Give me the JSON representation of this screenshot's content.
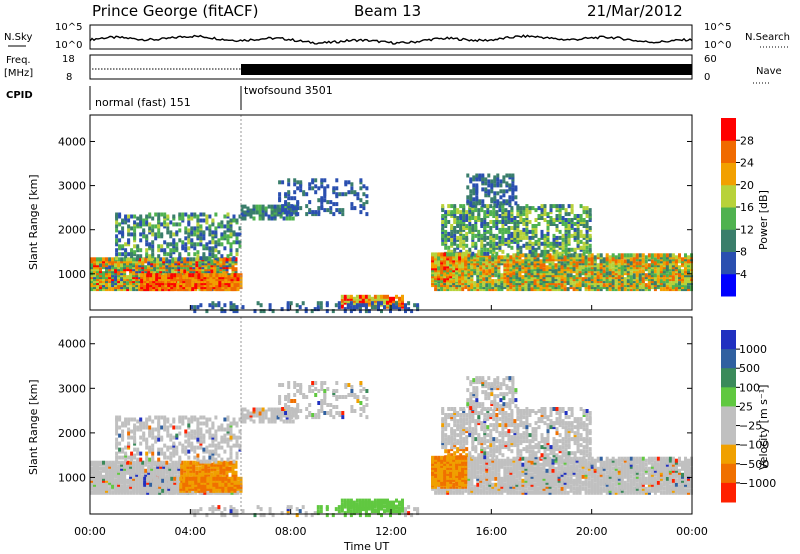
{
  "header": {
    "station": "Prince George (fitACF)",
    "beam": "Beam 13",
    "date": "21/Mar/2012"
  },
  "noise_panel": {
    "left_label": "N.Sky",
    "right_label": "N.Search",
    "tick_top_left": "10^5",
    "tick_bottom_left": "10^0",
    "tick_top_right": "10^5",
    "tick_bottom_right": "10^0"
  },
  "freq_panel": {
    "left_label_line1": "Freq.",
    "left_label_line2": "[MHz]",
    "tick_top_left": "18",
    "tick_bottom_left": "8",
    "right_label": "Nave",
    "tick_top_right": "60",
    "tick_bottom_right": "0"
  },
  "cpid": {
    "label": "CPID",
    "modes": [
      {
        "name": "normal (fast) 151",
        "start": "00:00",
        "end": "06:00"
      },
      {
        "name": "twofsound 3501",
        "start": "06:00",
        "end": "24:00"
      }
    ]
  },
  "colors": {
    "power_scale": [
      "#0000ff",
      "#2a4fb0",
      "#3a7e6b",
      "#4fb24f",
      "#b8d23a",
      "#f2a000",
      "#f06a00",
      "#ff0000"
    ],
    "velocity_scale": [
      "#2030c0",
      "#3060a0",
      "#3a8a5a",
      "#60c840",
      "#c0c0c0",
      "#c0c0c0",
      "#f0a000",
      "#f07000",
      "#ff2000"
    ]
  },
  "chart_data": [
    {
      "type": "heatmap",
      "name": "power",
      "ylabel": "Slant Range [km]",
      "y_ticks": [
        "1000",
        "2000",
        "3000",
        "4000"
      ],
      "ylim": [
        180,
        4600
      ],
      "colorbar_label": "Power [dB]",
      "colorbar_ticks": [
        "4",
        "8",
        "12",
        "16",
        "20",
        "24",
        "28"
      ],
      "colorbar_range": [
        0,
        32
      ]
    },
    {
      "type": "heatmap",
      "name": "velocity",
      "ylabel": "Slant Range [km]",
      "y_ticks": [
        "1000",
        "2000",
        "3000",
        "4000"
      ],
      "ylim": [
        180,
        4600
      ],
      "xlabel": "Time UT",
      "x_ticks": [
        "00:00",
        "04:00",
        "08:00",
        "12:00",
        "16:00",
        "20:00",
        "00:00"
      ],
      "xlim_hours": [
        0,
        24
      ],
      "colorbar_label": "Velocity [m s⁻¹]",
      "colorbar_ticks": [
        "1000",
        "500",
        "100",
        "25",
        "−25",
        "−100",
        "−500",
        "−1000"
      ]
    }
  ]
}
